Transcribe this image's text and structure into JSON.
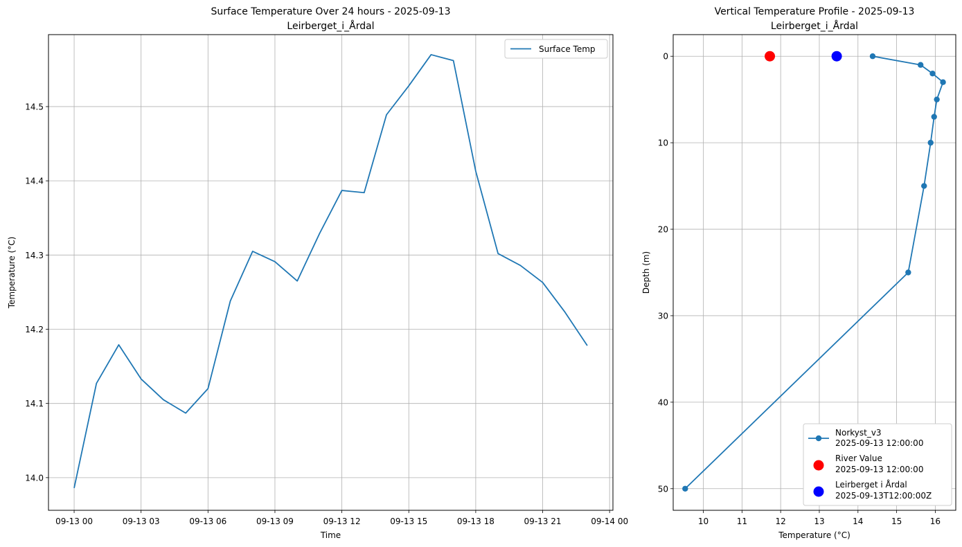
{
  "chart_data": [
    {
      "type": "line",
      "title_line1": "Surface Temperature Over 24 hours - 2025-09-13",
      "title_line2": "Leirberget_i_Årdal",
      "xlabel": "Time",
      "ylabel": "Temperature (°C)",
      "xlim": [
        -1.15,
        24.15
      ],
      "ylim": [
        13.956,
        14.597
      ],
      "x_ticks": [
        0,
        3,
        6,
        9,
        12,
        15,
        18,
        21,
        24
      ],
      "x_tick_labels": [
        "09-13 00",
        "09-13 03",
        "09-13 06",
        "09-13 09",
        "09-13 12",
        "09-13 15",
        "09-13 18",
        "09-13 21",
        "09-14 00"
      ],
      "y_ticks": [
        14.0,
        14.1,
        14.2,
        14.3,
        14.4,
        14.5
      ],
      "y_tick_labels": [
        "14.0",
        "14.1",
        "14.2",
        "14.3",
        "14.4",
        "14.5"
      ],
      "grid": true,
      "legend_position": "upper right",
      "series": [
        {
          "name": "Surface Temp",
          "color": "#1f77b4",
          "x": [
            0,
            1,
            2,
            3,
            4,
            5,
            6,
            7,
            8,
            9,
            10,
            11,
            12,
            13,
            14,
            15,
            16,
            17,
            18,
            19,
            20,
            21,
            22,
            23
          ],
          "y": [
            13.986,
            14.127,
            14.179,
            14.133,
            14.105,
            14.087,
            14.12,
            14.238,
            14.305,
            14.291,
            14.265,
            14.329,
            14.387,
            14.384,
            14.489,
            14.528,
            14.57,
            14.562,
            14.413,
            14.302,
            14.286,
            14.263,
            14.223,
            14.178
          ]
        }
      ]
    },
    {
      "type": "scatter",
      "title_line1": "Vertical Temperature Profile - 2025-09-13",
      "title_line2": "Leirberget_i_Årdal",
      "xlabel": "Temperature (°C)",
      "ylabel": "Depth (m)",
      "xlim": [
        9.22,
        16.53
      ],
      "ylim": [
        52.5,
        -2.5
      ],
      "y_inverted": true,
      "x_ticks": [
        10,
        11,
        12,
        13,
        14,
        15,
        16
      ],
      "x_tick_labels": [
        "10",
        "11",
        "12",
        "13",
        "14",
        "15",
        "16"
      ],
      "y_ticks": [
        0,
        10,
        20,
        30,
        40,
        50
      ],
      "y_tick_labels": [
        "0",
        "10",
        "20",
        "30",
        "40",
        "50"
      ],
      "grid": true,
      "legend_position": "lower right",
      "series": [
        {
          "name_line1": "Norkyst_v3",
          "name_line2": "2025-09-13 12:00:00",
          "color": "#1f77b4",
          "marker": "circle",
          "line": true,
          "temperature": [
            14.38,
            15.62,
            15.93,
            16.2,
            16.04,
            15.97,
            15.88,
            15.71,
            15.3,
            9.53
          ],
          "depth": [
            0,
            1,
            2,
            3,
            5,
            7,
            10,
            15,
            25,
            50
          ]
        },
        {
          "name_line1": "River Value",
          "name_line2": "2025-09-13 12:00:00",
          "color": "#ff0000",
          "marker": "circle-large",
          "line": false,
          "temperature": [
            11.72
          ],
          "depth": [
            0
          ]
        },
        {
          "name_line1": "Leirberget i Årdal",
          "name_line2": "2025-09-13T12:00:00Z",
          "color": "#0000ff",
          "marker": "circle-large",
          "line": false,
          "temperature": [
            13.45
          ],
          "depth": [
            0
          ]
        }
      ]
    }
  ]
}
